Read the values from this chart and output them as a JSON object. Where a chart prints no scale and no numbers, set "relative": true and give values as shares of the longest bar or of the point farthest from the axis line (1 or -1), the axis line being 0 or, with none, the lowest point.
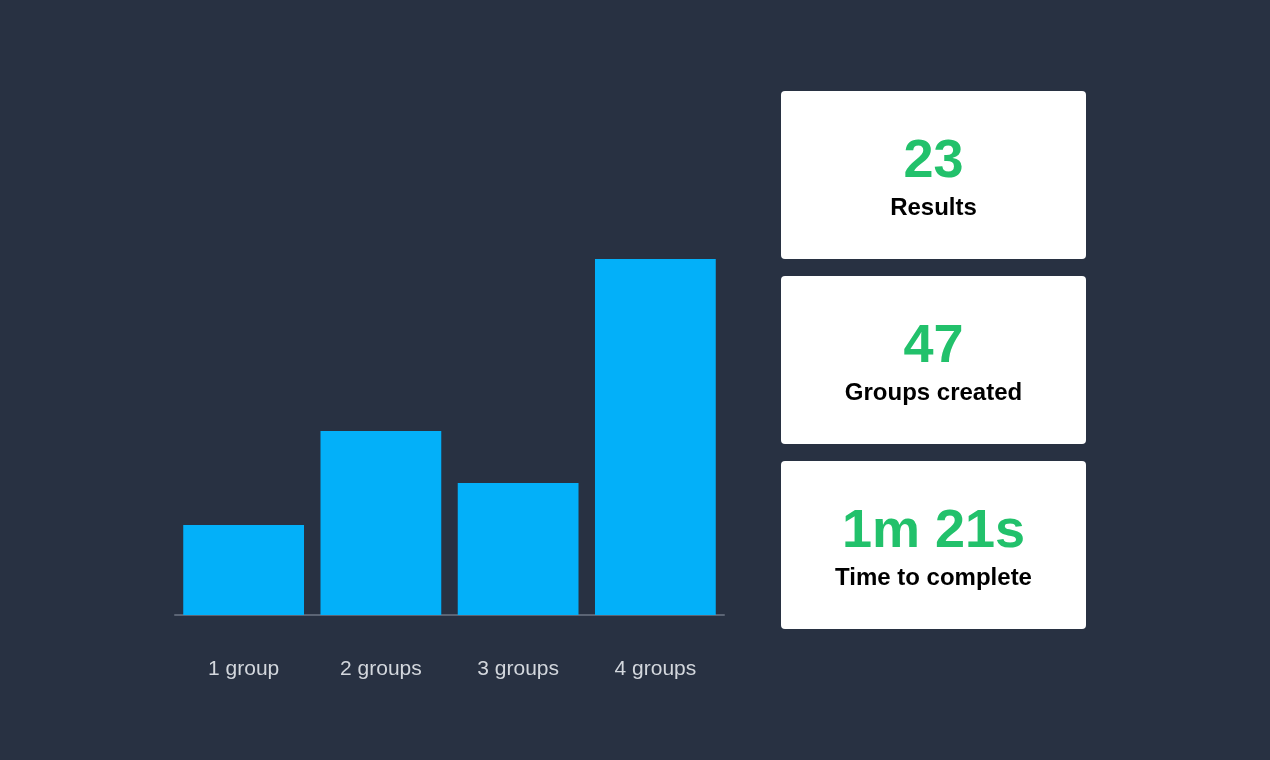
{
  "chart_data": [
    {
      "type": "bar",
      "categories": [
        "1 group",
        "2 groups",
        "3 groups",
        "4 groups"
      ],
      "values": [
        0.253,
        0.517,
        0.371,
        1
      ],
      "color": "#03b0f9",
      "relative": true
    },
    {
      "type": "other",
      "annotations": [
        "23",
        "Results",
        "47",
        "Groups created",
        "1m 21s",
        "Time to complete"
      ]
    }
  ]
}
